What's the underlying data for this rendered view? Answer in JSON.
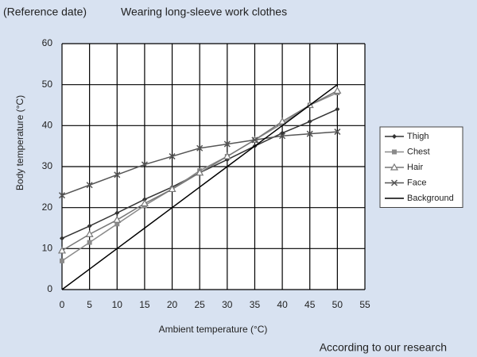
{
  "chart_data": {
    "type": "line",
    "title": "(Reference date)",
    "subtitle": "Wearing long-sleeve work clothes",
    "note": "According to our research",
    "x_label": "Ambient temperature (°C)",
    "y_label": "Body temperature (°C)",
    "x": [
      0,
      5,
      10,
      15,
      20,
      25,
      30,
      35,
      40,
      45,
      50
    ],
    "series": [
      {
        "name": "Thigh",
        "color": "#333333",
        "marker": "diamond",
        "values": [
          12.5,
          15.5,
          18.7,
          22,
          25,
          28.5,
          31.7,
          35,
          38.2,
          41,
          44
        ]
      },
      {
        "name": "Chest",
        "color": "#8a8a8a",
        "marker": "square",
        "values": [
          7,
          11.5,
          16,
          20.5,
          24.5,
          29,
          32.5,
          36.5,
          40.5,
          45,
          48
        ]
      },
      {
        "name": "Hair",
        "color": "#777777",
        "marker": "triangle",
        "values": [
          9.5,
          13.5,
          17,
          21,
          24.5,
          28.5,
          32.5,
          36.5,
          41,
          45,
          48.5
        ]
      },
      {
        "name": "Face",
        "color": "#555555",
        "marker": "x",
        "values": [
          23,
          25.5,
          28,
          30.5,
          32.5,
          34.5,
          35.5,
          36.5,
          37.5,
          38,
          38.5
        ]
      },
      {
        "name": "Background",
        "color": "#000000",
        "marker": "none",
        "values": [
          0,
          5,
          10,
          15,
          20,
          25,
          30,
          35,
          40,
          45,
          50
        ]
      }
    ],
    "xlim": [
      0,
      55
    ],
    "xticks": [
      0,
      5,
      10,
      15,
      20,
      25,
      30,
      35,
      40,
      45,
      50,
      55
    ],
    "ylim": [
      0,
      60
    ],
    "yticks": [
      0,
      10,
      20,
      30,
      40,
      50,
      60
    ],
    "grid": true,
    "legend": "right"
  }
}
